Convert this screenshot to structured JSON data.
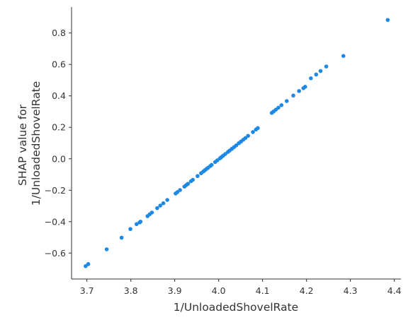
{
  "chart_data": {
    "type": "scatter",
    "title": "",
    "xlabel": "1/UnloadedShovelRate",
    "ylabel": "SHAP value for\n1/UnloadedShovelRate",
    "xlim": [
      3.665,
      4.415
    ],
    "ylim": [
      -0.765,
      0.965
    ],
    "xticks": [
      "3.7",
      "3.8",
      "3.9",
      "4.0",
      "4.1",
      "4.2",
      "4.3",
      "4.4"
    ],
    "yticks": [
      "−0.6",
      "−0.4",
      "−0.2",
      "0.0",
      "0.2",
      "0.4",
      "0.6",
      "0.8"
    ],
    "grid": false,
    "color": "#1e88e5",
    "x": [
      3.697,
      3.703,
      3.745,
      3.779,
      3.799,
      3.813,
      3.82,
      3.822,
      3.838,
      3.843,
      3.848,
      3.86,
      3.867,
      3.874,
      3.883,
      3.902,
      3.906,
      3.912,
      3.922,
      3.926,
      3.93,
      3.937,
      3.941,
      3.952,
      3.96,
      3.965,
      3.969,
      3.973,
      3.976,
      3.981,
      3.984,
      3.992,
      3.997,
      4.003,
      4.006,
      4.01,
      4.015,
      4.021,
      4.025,
      4.03,
      4.035,
      4.04,
      4.046,
      4.051,
      4.056,
      4.061,
      4.067,
      4.078,
      4.085,
      4.089,
      4.121,
      4.125,
      4.13,
      4.136,
      4.143,
      4.155,
      4.17,
      4.183,
      4.193,
      4.197,
      4.21,
      4.222,
      4.232,
      4.245,
      4.284,
      4.385
    ],
    "y": [
      -0.683,
      -0.67,
      -0.576,
      -0.502,
      -0.447,
      -0.416,
      -0.405,
      -0.4,
      -0.365,
      -0.353,
      -0.342,
      -0.314,
      -0.298,
      -0.283,
      -0.262,
      -0.221,
      -0.212,
      -0.199,
      -0.177,
      -0.168,
      -0.159,
      -0.143,
      -0.134,
      -0.11,
      -0.092,
      -0.081,
      -0.072,
      -0.063,
      -0.057,
      -0.046,
      -0.039,
      -0.021,
      -0.01,
      0.003,
      0.01,
      0.019,
      0.03,
      0.043,
      0.052,
      0.063,
      0.074,
      0.085,
      0.099,
      0.11,
      0.121,
      0.132,
      0.146,
      0.17,
      0.186,
      0.195,
      0.292,
      0.301,
      0.312,
      0.325,
      0.341,
      0.367,
      0.402,
      0.431,
      0.449,
      0.458,
      0.512,
      0.536,
      0.558,
      0.587,
      0.654,
      0.883
    ]
  }
}
